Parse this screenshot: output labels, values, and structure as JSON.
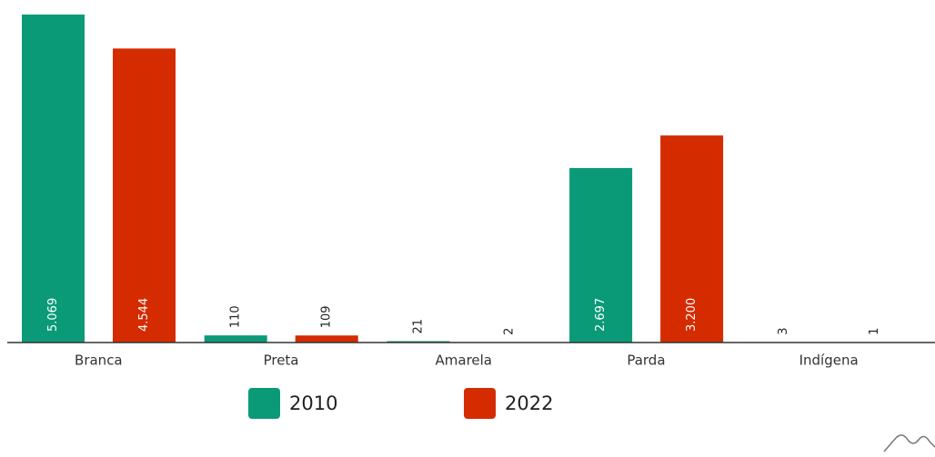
{
  "chart_data": {
    "type": "bar",
    "categories": [
      "Branca",
      "Preta",
      "Amarela",
      "Parda",
      "Indígena"
    ],
    "series": [
      {
        "name": "2010",
        "color": "#0b9a78",
        "values": [
          5069,
          110,
          21,
          2697,
          3
        ],
        "value_labels": [
          "5.069",
          "110",
          "21",
          "2.697",
          "3"
        ]
      },
      {
        "name": "2022",
        "color": "#d42b00",
        "values": [
          4544,
          109,
          2,
          3200,
          1
        ],
        "value_labels": [
          "4.544",
          "109",
          "2",
          "3.200",
          "1"
        ]
      }
    ],
    "legend": "bottom"
  }
}
